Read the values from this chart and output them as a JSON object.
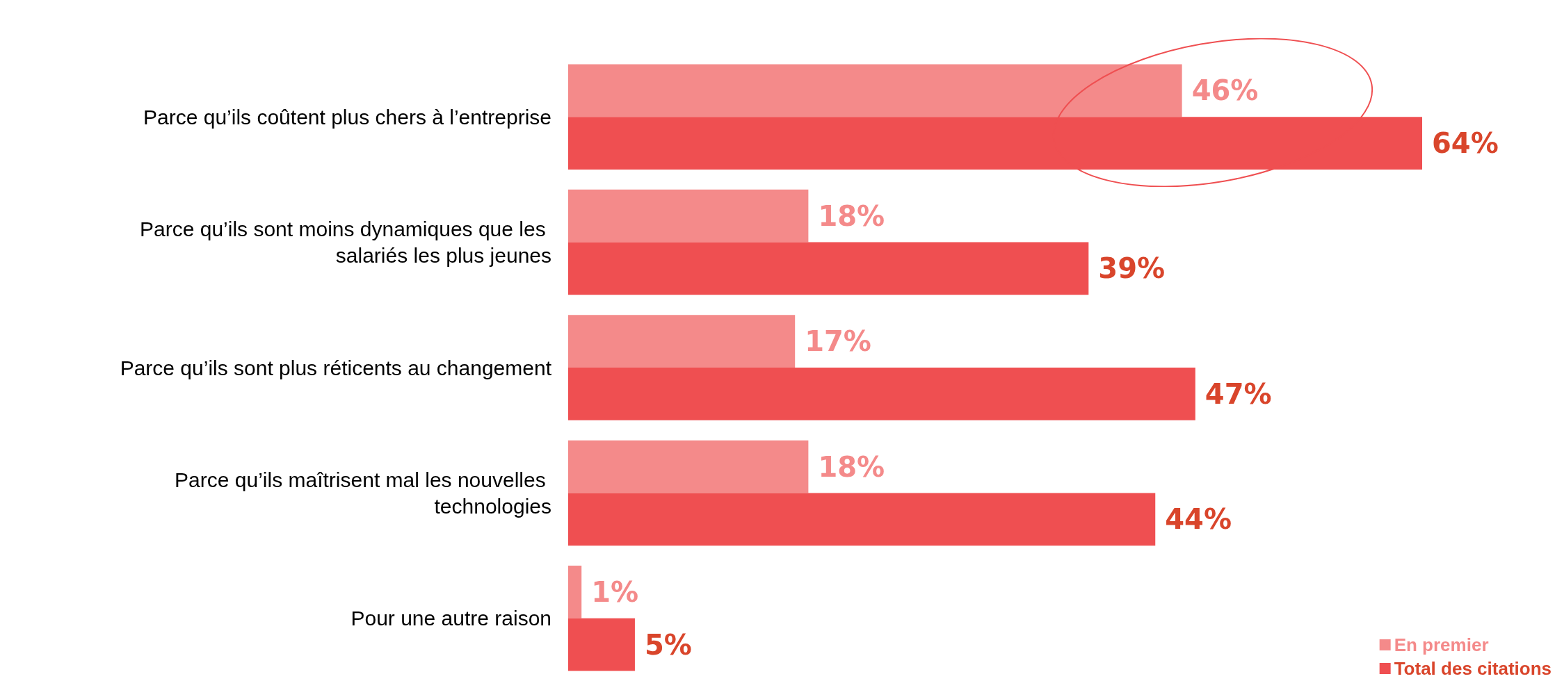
{
  "chart_data": {
    "type": "bar",
    "orientation": "horizontal",
    "categories": [
      "Parce qu’ils coûtent plus chers à l’entreprise",
      "Parce qu’ils sont moins dynamiques que les salariés les plus jeunes",
      "Parce qu’ils sont plus réticents au changement",
      "Parce qu’ils maîtrisent mal les nouvelles technologies",
      "Pour une autre raison"
    ],
    "series": [
      {
        "name": "En premier",
        "color": "#f48a8a",
        "values": [
          46,
          18,
          17,
          18,
          1
        ],
        "value_labels": [
          "46%",
          "18%",
          "17%",
          "18%",
          "1%"
        ]
      },
      {
        "name": "Total des citations",
        "color": "#ef4f51",
        "values": [
          64,
          39,
          47,
          44,
          5
        ],
        "value_labels": [
          "64%",
          "39%",
          "47%",
          "44%",
          "5%"
        ]
      }
    ],
    "legend": "bottom right"
  }
}
